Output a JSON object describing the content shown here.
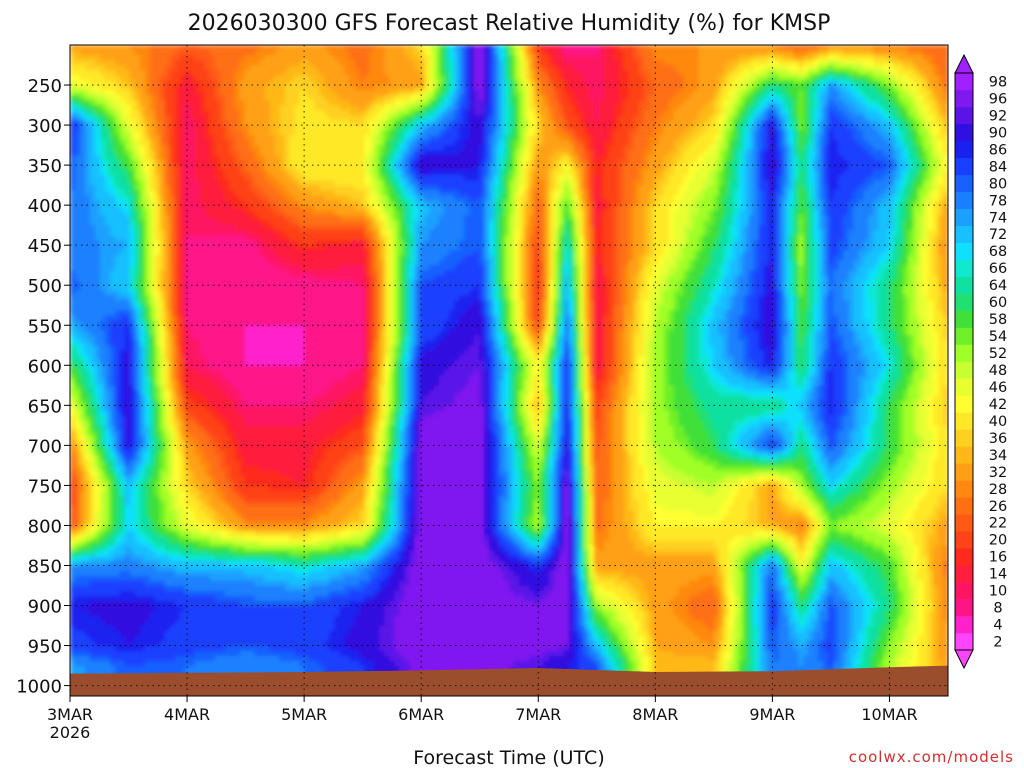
{
  "chart_data": {
    "type": "heatmap",
    "title": "2026030300 GFS Forecast Relative Humidity (%) for KMSP",
    "xlabel": "Forecast Time (UTC)",
    "ylabel": "",
    "credit": "coolwx.com/models",
    "x_ticks": [
      "3MAR",
      "4MAR",
      "5MAR",
      "6MAR",
      "7MAR",
      "8MAR",
      "9MAR",
      "10MAR"
    ],
    "x_tick_year": "2026",
    "y_ticks": [
      250,
      300,
      350,
      400,
      450,
      500,
      550,
      600,
      650,
      700,
      750,
      800,
      850,
      900,
      950,
      1000
    ],
    "ylim": [
      200,
      1013
    ],
    "xlim_days": [
      0,
      7.5
    ],
    "grid": true,
    "colorbar_levels": [
      2,
      4,
      8,
      10,
      14,
      16,
      20,
      22,
      26,
      28,
      32,
      34,
      36,
      40,
      42,
      46,
      48,
      52,
      54,
      58,
      60,
      64,
      66,
      68,
      72,
      74,
      78,
      80,
      84,
      86,
      90,
      92,
      96,
      98
    ],
    "colorbar_colors": [
      "#ff44ff",
      "#ff22cc",
      "#ff1488",
      "#ff1464",
      "#ff1e3c",
      "#ff2a1e",
      "#ff4218",
      "#ff5a14",
      "#ff7012",
      "#ff8810",
      "#ffa014",
      "#ffb818",
      "#ffd020",
      "#ffe828",
      "#ffff30",
      "#e8ff30",
      "#c8ff30",
      "#a0ff28",
      "#70f028",
      "#40e038",
      "#20e070",
      "#10e0a0",
      "#10e8d0",
      "#10e0ff",
      "#18c0ff",
      "#1aa0ff",
      "#1a80ff",
      "#1860ff",
      "#1a40ff",
      "#1a20f0",
      "#3010e0",
      "#5a14e8",
      "#8018f0",
      "#a020ff"
    ],
    "ground_color": "#9b4e2e",
    "time_columns_days": [
      0.0,
      0.5,
      1.0,
      1.5,
      2.0,
      2.5,
      3.0,
      3.5,
      4.0,
      4.25,
      4.5,
      5.0,
      5.5,
      6.0,
      6.25,
      6.5,
      7.0,
      7.5
    ],
    "pressure_rows": [
      200,
      250,
      300,
      350,
      400,
      450,
      500,
      550,
      600,
      650,
      700,
      750,
      800,
      850,
      900,
      950,
      975
    ],
    "rh_values": [
      [
        30,
        28,
        22,
        24,
        30,
        24,
        36,
        96,
        16,
        6,
        8,
        28,
        28,
        26,
        20,
        26,
        26,
        22
      ],
      [
        44,
        34,
        12,
        30,
        36,
        26,
        30,
        96,
        28,
        14,
        8,
        22,
        30,
        60,
        54,
        74,
        52,
        24
      ],
      [
        86,
        44,
        8,
        28,
        38,
        36,
        70,
        90,
        36,
        20,
        10,
        26,
        36,
        88,
        52,
        84,
        70,
        32
      ],
      [
        80,
        56,
        8,
        22,
        40,
        40,
        90,
        86,
        28,
        40,
        14,
        30,
        46,
        90,
        60,
        86,
        80,
        40
      ],
      [
        78,
        66,
        8,
        16,
        28,
        34,
        70,
        80,
        22,
        56,
        12,
        36,
        52,
        86,
        54,
        84,
        70,
        30
      ],
      [
        76,
        72,
        8,
        6,
        16,
        12,
        74,
        80,
        18,
        66,
        14,
        36,
        58,
        86,
        50,
        82,
        68,
        26
      ],
      [
        80,
        68,
        8,
        4,
        6,
        8,
        80,
        84,
        14,
        72,
        10,
        44,
        64,
        88,
        52,
        78,
        60,
        30
      ],
      [
        72,
        84,
        8,
        4,
        4,
        8,
        80,
        90,
        18,
        78,
        10,
        48,
        70,
        90,
        56,
        80,
        60,
        34
      ],
      [
        56,
        88,
        10,
        4,
        4,
        8,
        88,
        92,
        40,
        84,
        10,
        50,
        68,
        86,
        58,
        84,
        66,
        36
      ],
      [
        42,
        90,
        18,
        8,
        8,
        12,
        90,
        94,
        32,
        86,
        18,
        50,
        62,
        60,
        70,
        86,
        58,
        34
      ],
      [
        26,
        88,
        30,
        12,
        12,
        20,
        96,
        96,
        44,
        88,
        20,
        48,
        58,
        84,
        60,
        80,
        58,
        36
      ],
      [
        16,
        70,
        36,
        16,
        14,
        30,
        96,
        94,
        52,
        94,
        22,
        44,
        48,
        30,
        50,
        68,
        50,
        36
      ],
      [
        20,
        68,
        44,
        28,
        28,
        36,
        96,
        94,
        48,
        96,
        24,
        40,
        40,
        32,
        26,
        52,
        44,
        30
      ],
      [
        74,
        76,
        70,
        70,
        64,
        72,
        96,
        96,
        84,
        96,
        30,
        30,
        30,
        78,
        42,
        70,
        56,
        24
      ],
      [
        86,
        88,
        84,
        80,
        80,
        86,
        96,
        96,
        92,
        96,
        50,
        30,
        22,
        84,
        60,
        80,
        60,
        26
      ],
      [
        82,
        86,
        82,
        80,
        82,
        88,
        96,
        96,
        94,
        92,
        70,
        32,
        28,
        80,
        72,
        82,
        52,
        28
      ],
      [
        72,
        80,
        78,
        74,
        78,
        84,
        94,
        94,
        90,
        86,
        80,
        34,
        34,
        78,
        74,
        80,
        48,
        30
      ]
    ],
    "surface_pressure_days": [
      0,
      1,
      2,
      3,
      4,
      5,
      6,
      7,
      7.5
    ],
    "surface_pressure_hpa": [
      985,
      984,
      983,
      981,
      978,
      983,
      982,
      977,
      975
    ]
  }
}
